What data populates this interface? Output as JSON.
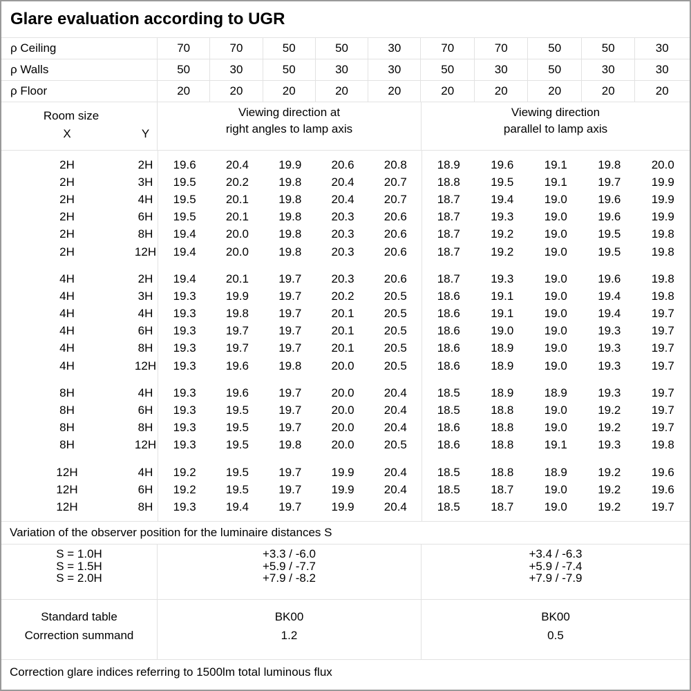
{
  "title": "Glare evaluation according to UGR",
  "reflectance_rows": [
    {
      "label": "ρ Ceiling",
      "values": [
        "70",
        "70",
        "50",
        "50",
        "30",
        "70",
        "70",
        "50",
        "50",
        "30"
      ]
    },
    {
      "label": "ρ Walls",
      "values": [
        "50",
        "30",
        "50",
        "30",
        "30",
        "50",
        "30",
        "50",
        "30",
        "30"
      ]
    },
    {
      "label": "ρ Floor",
      "values": [
        "20",
        "20",
        "20",
        "20",
        "20",
        "20",
        "20",
        "20",
        "20",
        "20"
      ]
    }
  ],
  "header": {
    "room_size": "Room size",
    "x": "X",
    "y": "Y",
    "right_angles_line1": "Viewing direction at",
    "right_angles_line2": "right angles to lamp axis",
    "parallel_line1": "Viewing direction",
    "parallel_line2": "parallel to lamp axis"
  },
  "ugr_blocks": [
    {
      "rows": [
        {
          "x": "2H",
          "y": "2H",
          "right_angles": [
            "19.6",
            "20.4",
            "19.9",
            "20.6",
            "20.8"
          ],
          "parallel": [
            "18.9",
            "19.6",
            "19.1",
            "19.8",
            "20.0"
          ]
        },
        {
          "x": "2H",
          "y": "3H",
          "right_angles": [
            "19.5",
            "20.2",
            "19.8",
            "20.4",
            "20.7"
          ],
          "parallel": [
            "18.8",
            "19.5",
            "19.1",
            "19.7",
            "19.9"
          ]
        },
        {
          "x": "2H",
          "y": "4H",
          "right_angles": [
            "19.5",
            "20.1",
            "19.8",
            "20.4",
            "20.7"
          ],
          "parallel": [
            "18.7",
            "19.4",
            "19.0",
            "19.6",
            "19.9"
          ]
        },
        {
          "x": "2H",
          "y": "6H",
          "right_angles": [
            "19.5",
            "20.1",
            "19.8",
            "20.3",
            "20.6"
          ],
          "parallel": [
            "18.7",
            "19.3",
            "19.0",
            "19.6",
            "19.9"
          ]
        },
        {
          "x": "2H",
          "y": "8H",
          "right_angles": [
            "19.4",
            "20.0",
            "19.8",
            "20.3",
            "20.6"
          ],
          "parallel": [
            "18.7",
            "19.2",
            "19.0",
            "19.5",
            "19.8"
          ]
        },
        {
          "x": "2H",
          "y": "12H",
          "right_angles": [
            "19.4",
            "20.0",
            "19.8",
            "20.3",
            "20.6"
          ],
          "parallel": [
            "18.7",
            "19.2",
            "19.0",
            "19.5",
            "19.8"
          ]
        }
      ]
    },
    {
      "rows": [
        {
          "x": "4H",
          "y": "2H",
          "right_angles": [
            "19.4",
            "20.1",
            "19.7",
            "20.3",
            "20.6"
          ],
          "parallel": [
            "18.7",
            "19.3",
            "19.0",
            "19.6",
            "19.8"
          ]
        },
        {
          "x": "4H",
          "y": "3H",
          "right_angles": [
            "19.3",
            "19.9",
            "19.7",
            "20.2",
            "20.5"
          ],
          "parallel": [
            "18.6",
            "19.1",
            "19.0",
            "19.4",
            "19.8"
          ]
        },
        {
          "x": "4H",
          "y": "4H",
          "right_angles": [
            "19.3",
            "19.8",
            "19.7",
            "20.1",
            "20.5"
          ],
          "parallel": [
            "18.6",
            "19.1",
            "19.0",
            "19.4",
            "19.7"
          ]
        },
        {
          "x": "4H",
          "y": "6H",
          "right_angles": [
            "19.3",
            "19.7",
            "19.7",
            "20.1",
            "20.5"
          ],
          "parallel": [
            "18.6",
            "19.0",
            "19.0",
            "19.3",
            "19.7"
          ]
        },
        {
          "x": "4H",
          "y": "8H",
          "right_angles": [
            "19.3",
            "19.7",
            "19.7",
            "20.1",
            "20.5"
          ],
          "parallel": [
            "18.6",
            "18.9",
            "19.0",
            "19.3",
            "19.7"
          ]
        },
        {
          "x": "4H",
          "y": "12H",
          "right_angles": [
            "19.3",
            "19.6",
            "19.8",
            "20.0",
            "20.5"
          ],
          "parallel": [
            "18.6",
            "18.9",
            "19.0",
            "19.3",
            "19.7"
          ]
        }
      ]
    },
    {
      "rows": [
        {
          "x": "8H",
          "y": "4H",
          "right_angles": [
            "19.3",
            "19.6",
            "19.7",
            "20.0",
            "20.4"
          ],
          "parallel": [
            "18.5",
            "18.9",
            "18.9",
            "19.3",
            "19.7"
          ]
        },
        {
          "x": "8H",
          "y": "6H",
          "right_angles": [
            "19.3",
            "19.5",
            "19.7",
            "20.0",
            "20.4"
          ],
          "parallel": [
            "18.5",
            "18.8",
            "19.0",
            "19.2",
            "19.7"
          ]
        },
        {
          "x": "8H",
          "y": "8H",
          "right_angles": [
            "19.3",
            "19.5",
            "19.7",
            "20.0",
            "20.4"
          ],
          "parallel": [
            "18.6",
            "18.8",
            "19.0",
            "19.2",
            "19.7"
          ]
        },
        {
          "x": "8H",
          "y": "12H",
          "right_angles": [
            "19.3",
            "19.5",
            "19.8",
            "20.0",
            "20.5"
          ],
          "parallel": [
            "18.6",
            "18.8",
            "19.1",
            "19.3",
            "19.8"
          ]
        }
      ]
    },
    {
      "rows": [
        {
          "x": "12H",
          "y": "4H",
          "right_angles": [
            "19.2",
            "19.5",
            "19.7",
            "19.9",
            "20.4"
          ],
          "parallel": [
            "18.5",
            "18.8",
            "18.9",
            "19.2",
            "19.6"
          ]
        },
        {
          "x": "12H",
          "y": "6H",
          "right_angles": [
            "19.2",
            "19.5",
            "19.7",
            "19.9",
            "20.4"
          ],
          "parallel": [
            "18.5",
            "18.7",
            "19.0",
            "19.2",
            "19.6"
          ]
        },
        {
          "x": "12H",
          "y": "8H",
          "right_angles": [
            "19.3",
            "19.4",
            "19.7",
            "19.9",
            "20.4"
          ],
          "parallel": [
            "18.5",
            "18.7",
            "19.0",
            "19.2",
            "19.7"
          ]
        }
      ]
    }
  ],
  "variation": {
    "label": "Variation of the observer position for the luminaire distances S",
    "rows": [
      {
        "s": "S = 1.0H",
        "right_angles": "+3.3 / -6.0",
        "parallel": "+3.4 / -6.3"
      },
      {
        "s": "S = 1.5H",
        "right_angles": "+5.9 / -7.7",
        "parallel": "+5.9 / -7.4"
      },
      {
        "s": "S = 2.0H",
        "right_angles": "+7.9 / -8.2",
        "parallel": "+7.9 / -7.9"
      }
    ]
  },
  "summary": {
    "rows": [
      {
        "label": "Standard table",
        "right_angles": "BK00",
        "parallel": "BK00"
      },
      {
        "label": "Correction summand",
        "right_angles": "1.2",
        "parallel": "0.5"
      }
    ]
  },
  "footer": "Correction glare indices referring to 1500lm total luminous flux",
  "colors": {
    "background": "#ffffff",
    "text": "#000000",
    "border_outer": "#999999",
    "border_inner": "#e2e2e2"
  }
}
